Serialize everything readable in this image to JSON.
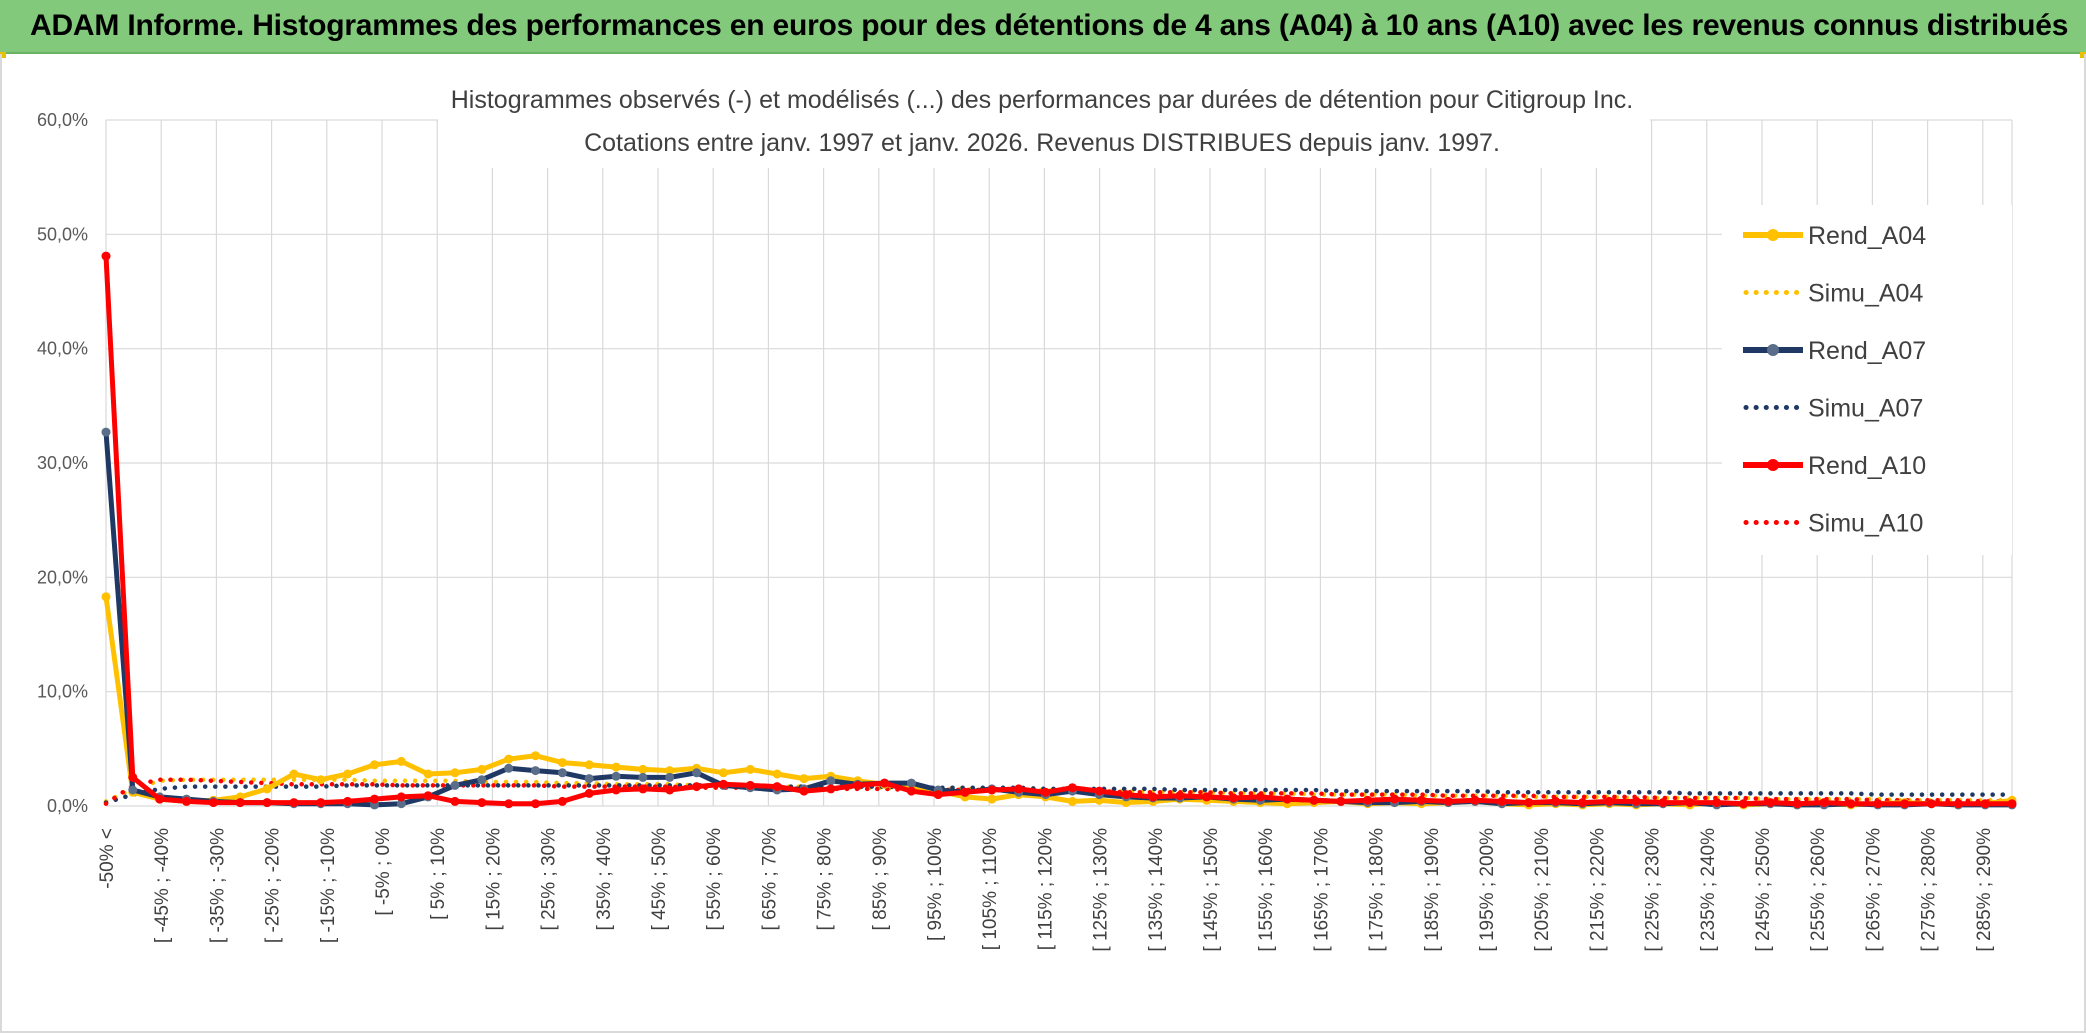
{
  "header": {
    "title": "ADAM Informe. Histogrammes des performances en euros pour des détentions de 4 ans (A04) à 10 ans (A10) avec les revenus connus distribués"
  },
  "colors": {
    "banner": "#82c97c",
    "a04": "#ffc000",
    "a07": "#1f3864",
    "a07_marker": "#5a6e8a",
    "a10": "#ff0000",
    "grid": "#d9d9d9"
  },
  "chart_data": {
    "type": "line",
    "title": "Histogrammes observés (-) et modélisés (...) des performances par durées de détention pour Citigroup Inc.",
    "subtitle": "Cotations entre janv. 1997 et janv. 2026.  Revenus DISTRIBUES depuis janv. 1997.",
    "xlabel": "",
    "ylabel": "",
    "ylim": [
      0,
      60
    ],
    "yticks": [
      "0,0%",
      "10,0%",
      "20,0%",
      "30,0%",
      "40,0%",
      "50,0%",
      "60,0%"
    ],
    "xtick_labels": [
      "-50% <",
      "[ -45% ; -40%",
      "[ -35% ; -30%",
      "[ -25% ; -20%",
      "[ -15% ; -10%",
      "[ -5% ; 0%",
      "[ 5% ; 10%",
      "[ 15% ; 20%",
      "[ 25% ; 30%",
      "[ 35% ; 40%",
      "[ 45% ; 50%",
      "[ 55% ; 60%",
      "[ 65% ; 70%",
      "[ 75% ; 80%",
      "[ 85% ; 90%",
      "[ 95% ; 100%",
      "[ 105% ; 110%",
      "[ 115% ; 120%",
      "[ 125% ; 130%",
      "[ 135% ; 140%",
      "[ 145% ; 150%",
      "[ 155% ; 160%",
      "[ 165% ; 170%",
      "[ 175% ; 180%",
      "[ 185% ; 190%",
      "[ 195% ; 200%",
      "[ 205% ; 210%",
      "[ 215% ; 220%",
      "[ 225% ; 230%",
      "[ 235% ; 240%",
      "[ 245% ; 250%",
      "[ 255% ; 260%",
      "[ 265% ; 270%",
      "[ 275% ; 280%",
      "[ 285% ; 290%"
    ],
    "grid": true,
    "legend_position": "right",
    "series": [
      {
        "name": "Rend_A04",
        "style": "solid",
        "color": "#ffc000",
        "values": [
          18.3,
          1.2,
          0.6,
          0.4,
          0.5,
          0.8,
          1.5,
          2.8,
          2.3,
          2.8,
          3.6,
          3.9,
          2.8,
          2.9,
          3.2,
          4.1,
          4.4,
          3.8,
          3.6,
          3.4,
          3.2,
          3.1,
          3.3,
          2.9,
          3.2,
          2.8,
          2.4,
          2.6,
          2.2,
          1.9,
          1.5,
          1.3,
          0.8,
          0.6,
          1.0,
          0.8,
          0.4,
          0.5,
          0.3,
          0.4,
          0.6,
          0.5,
          0.4,
          0.3,
          0.2,
          0.3,
          0.4,
          0.2,
          0.3,
          0.2,
          0.3,
          0.4,
          0.2,
          0.1,
          0.2,
          0.1,
          0.2,
          0.1,
          0.2,
          0.1,
          0.3,
          0.1,
          0.2,
          0.1,
          0.2,
          0.1,
          0.2,
          0.3,
          0.2,
          0.1,
          0.2,
          0.5
        ]
      },
      {
        "name": "Simu_A04",
        "style": "dotted",
        "color": "#ffc000",
        "values": [
          0.4,
          1.5,
          2.2,
          2.3,
          2.3,
          2.3,
          2.3,
          2.3,
          2.3,
          2.3,
          2.2,
          2.2,
          2.2,
          2.2,
          2.1,
          2.1,
          2.1,
          2.0,
          2.0,
          1.9,
          1.9,
          1.9,
          1.8,
          1.8,
          1.8,
          1.7,
          1.7,
          1.6,
          1.6,
          1.6,
          1.5,
          1.5,
          1.5,
          1.4,
          1.4,
          1.4,
          1.3,
          1.3,
          1.3,
          1.2,
          1.2,
          1.2,
          1.1,
          1.1,
          1.1,
          1.0,
          1.0,
          1.0,
          1.0,
          0.9,
          0.9,
          0.9,
          0.9,
          0.8,
          0.8,
          0.8,
          0.8,
          0.7,
          0.7,
          0.7,
          0.7,
          0.7,
          0.6,
          0.6,
          0.6,
          0.6,
          0.6,
          0.5,
          0.5,
          0.5,
          0.5,
          0.5
        ]
      },
      {
        "name": "Rend_A07",
        "style": "solid",
        "color": "#1f3864",
        "values": [
          32.7,
          1.4,
          0.8,
          0.6,
          0.4,
          0.3,
          0.3,
          0.2,
          0.2,
          0.2,
          0.1,
          0.2,
          0.8,
          1.8,
          2.3,
          3.3,
          3.1,
          2.9,
          2.4,
          2.6,
          2.5,
          2.5,
          2.9,
          1.8,
          1.6,
          1.4,
          1.5,
          2.2,
          1.9,
          2.0,
          2.0,
          1.4,
          1.2,
          1.5,
          1.2,
          1.0,
          1.3,
          1.0,
          0.8,
          0.7,
          0.7,
          0.8,
          0.6,
          0.5,
          0.6,
          0.5,
          0.4,
          0.3,
          0.3,
          0.4,
          0.3,
          0.4,
          0.2,
          0.3,
          0.3,
          0.2,
          0.3,
          0.2,
          0.2,
          0.3,
          0.1,
          0.2,
          0.2,
          0.1,
          0.1,
          0.2,
          0.1,
          0.1,
          0.2,
          0.1,
          0.1,
          0.1
        ]
      },
      {
        "name": "Simu_A07",
        "style": "dotted",
        "color": "#1f3864",
        "values": [
          0.3,
          1.0,
          1.5,
          1.7,
          1.7,
          1.7,
          1.7,
          1.7,
          1.7,
          1.8,
          1.8,
          1.8,
          1.8,
          1.8,
          1.8,
          1.8,
          1.8,
          1.8,
          1.8,
          1.8,
          1.8,
          1.8,
          1.8,
          1.8,
          1.8,
          1.7,
          1.7,
          1.7,
          1.7,
          1.7,
          1.6,
          1.6,
          1.6,
          1.6,
          1.6,
          1.5,
          1.5,
          1.5,
          1.5,
          1.5,
          1.4,
          1.4,
          1.4,
          1.4,
          1.4,
          1.4,
          1.3,
          1.3,
          1.3,
          1.3,
          1.3,
          1.3,
          1.2,
          1.2,
          1.2,
          1.2,
          1.2,
          1.2,
          1.2,
          1.1,
          1.1,
          1.1,
          1.1,
          1.1,
          1.1,
          1.1,
          1.0,
          1.0,
          1.0,
          1.0,
          1.0,
          1.0
        ]
      },
      {
        "name": "Rend_A10",
        "style": "solid",
        "color": "#ff0000",
        "values": [
          48.1,
          2.5,
          0.6,
          0.4,
          0.3,
          0.3,
          0.3,
          0.3,
          0.3,
          0.4,
          0.6,
          0.8,
          0.9,
          0.4,
          0.3,
          0.2,
          0.2,
          0.4,
          1.1,
          1.4,
          1.5,
          1.4,
          1.7,
          1.9,
          1.8,
          1.7,
          1.3,
          1.5,
          1.8,
          2.0,
          1.3,
          1.0,
          1.2,
          1.4,
          1.5,
          1.2,
          1.6,
          1.3,
          1.0,
          0.8,
          0.9,
          0.8,
          0.7,
          0.8,
          0.6,
          0.5,
          0.4,
          0.5,
          0.6,
          0.5,
          0.4,
          0.5,
          0.4,
          0.3,
          0.4,
          0.3,
          0.4,
          0.4,
          0.3,
          0.3,
          0.3,
          0.2,
          0.3,
          0.2,
          0.3,
          0.2,
          0.2,
          0.2,
          0.2,
          0.2,
          0.2,
          0.2
        ]
      },
      {
        "name": "Simu_A10",
        "style": "dotted",
        "color": "#ff0000",
        "values": [
          0.2,
          1.8,
          2.3,
          2.3,
          2.2,
          2.1,
          2.0,
          1.9,
          1.9,
          1.9,
          1.9,
          1.8,
          1.8,
          1.8,
          1.8,
          1.8,
          1.8,
          1.7,
          1.7,
          1.7,
          1.7,
          1.7,
          1.6,
          1.6,
          1.6,
          1.6,
          1.5,
          1.5,
          1.5,
          1.5,
          1.4,
          1.4,
          1.4,
          1.4,
          1.3,
          1.3,
          1.3,
          1.3,
          1.2,
          1.2,
          1.2,
          1.2,
          1.1,
          1.1,
          1.1,
          1.1,
          1.0,
          1.0,
          1.0,
          1.0,
          0.9,
          0.9,
          0.9,
          0.9,
          0.8,
          0.8,
          0.8,
          0.8,
          0.7,
          0.7,
          0.7,
          0.7,
          0.6,
          0.6,
          0.6,
          0.6,
          0.5,
          0.5,
          0.5,
          0.5,
          0.4,
          0.4
        ]
      }
    ]
  }
}
